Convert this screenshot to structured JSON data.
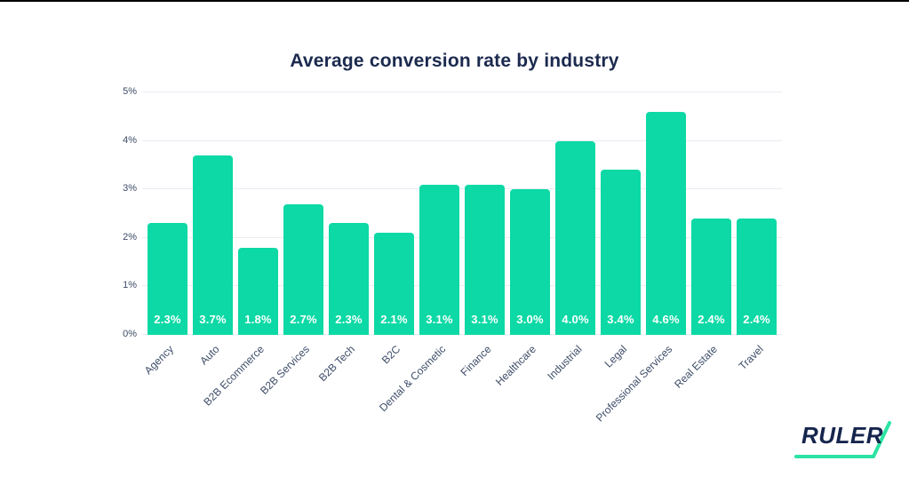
{
  "page": {
    "background_color": "#ffffff",
    "top_edge_color": "#000000"
  },
  "chart_data": {
    "type": "bar",
    "title": "Average conversion rate by industry",
    "categories": [
      "Agency",
      "Auto",
      "B2B Ecommerce",
      "B2B Services",
      "B2B Tech",
      "B2C",
      "Dental & Cosmetic",
      "Finance",
      "Healthcare",
      "Industrial",
      "Legal",
      "Professional Services",
      "Real Estate",
      "Travel"
    ],
    "values": [
      2.3,
      3.7,
      1.8,
      2.7,
      2.3,
      2.1,
      3.1,
      3.1,
      3.0,
      4.0,
      3.4,
      4.6,
      2.4,
      2.4
    ],
    "value_labels": [
      "2.3%",
      "3.7%",
      "1.8%",
      "2.7%",
      "2.3%",
      "2.1%",
      "3.1%",
      "3.1%",
      "3.0%",
      "4.0%",
      "3.4%",
      "4.6%",
      "2.4%",
      "2.4%"
    ],
    "xlabel": "",
    "ylabel": "",
    "ylim": [
      0,
      5
    ],
    "ytick_values": [
      0,
      1,
      2,
      3,
      4,
      5
    ],
    "ytick_labels": [
      "0%",
      "1%",
      "2%",
      "3%",
      "4%",
      "5%"
    ],
    "grid": true,
    "legend": false,
    "bar_color": "#0cd9a5"
  },
  "colors": {
    "bar": "#0cd9a5",
    "title": "#1b2a4e",
    "axis_label": "#3d4c68",
    "gridline": "#e8ecf2",
    "value_label": "#ffffff",
    "logo_navy": "#16254d",
    "logo_green": "#2be3a2",
    "background": "#ffffff"
  },
  "logo": {
    "text": "RULER"
  }
}
